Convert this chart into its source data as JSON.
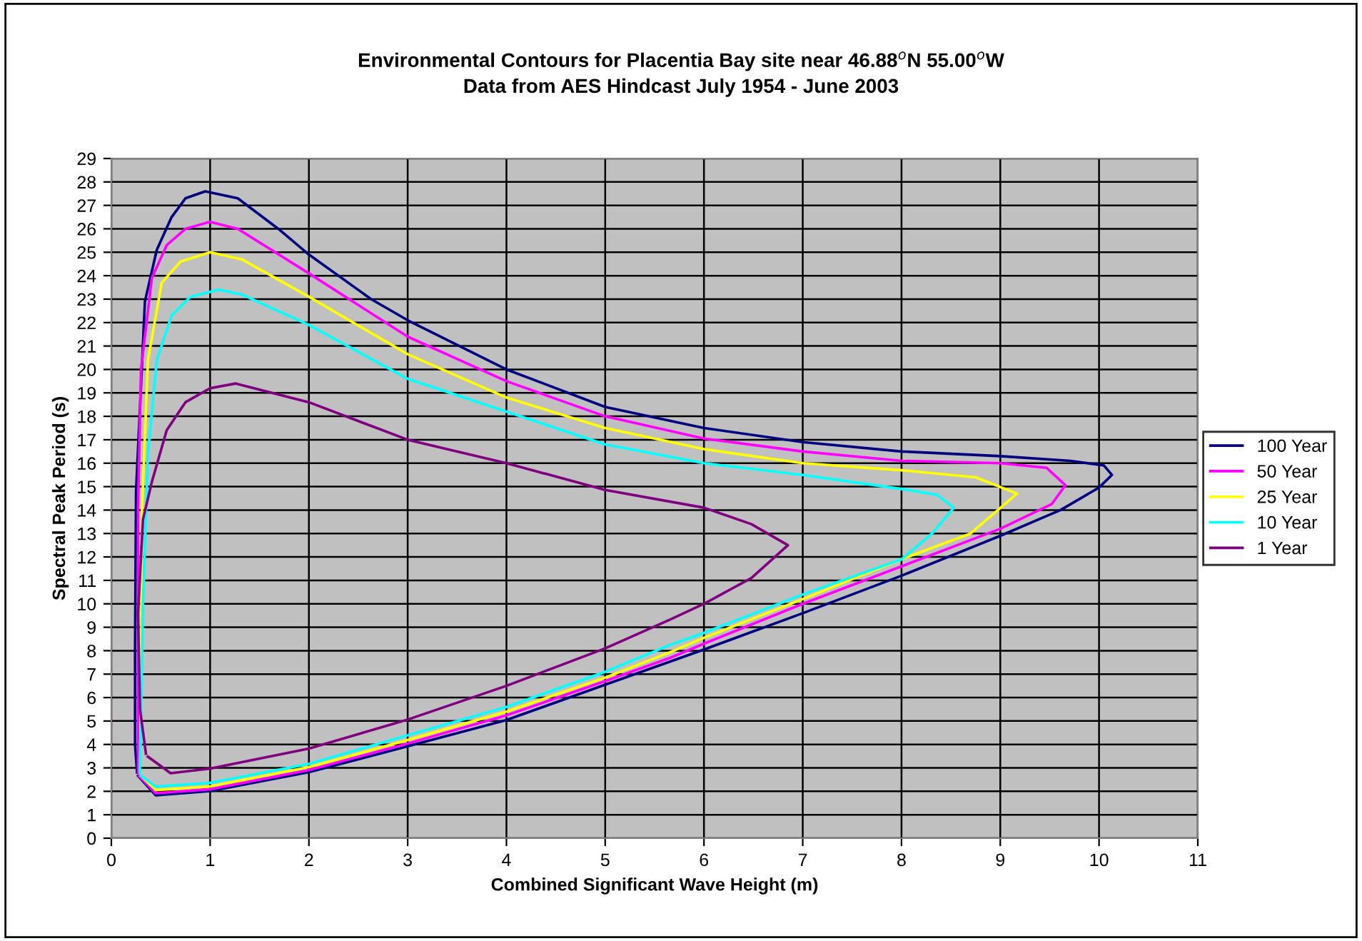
{
  "chart_data": {
    "type": "line",
    "title": "Environmental Contours for Placentia Bay site near 46.88$^{o}$N 55.00$^{o}$W\nData from AES Hindcast July 1954 - June 2003",
    "xlabel": "Combined Significant Wave Height (m)",
    "ylabel": "Spectral Peak Period (s)",
    "xlim": [
      0,
      11
    ],
    "xticks": [
      0,
      1,
      2,
      3,
      4,
      5,
      6,
      7,
      8,
      9,
      10,
      11
    ],
    "ylim": [
      0,
      29
    ],
    "yticks": [
      0,
      1,
      2,
      3,
      4,
      5,
      6,
      7,
      8,
      9,
      10,
      11,
      12,
      13,
      14,
      15,
      16,
      17,
      18,
      19,
      20,
      21,
      22,
      23,
      24,
      25,
      26,
      27,
      28,
      29
    ],
    "grid": true,
    "legend": "right",
    "marker": "none",
    "line_style": "solid",
    "series": [
      {
        "name": "100 Year",
        "color": "#000080",
        "x": [
          0.27,
          0.45,
          1,
          2,
          3,
          4,
          5,
          5.66,
          6,
          7,
          8,
          9,
          9.61,
          10,
          10.13,
          10.05,
          9.71,
          9,
          8,
          7,
          6,
          5,
          4,
          3,
          2.63,
          2,
          1.69,
          1.28,
          0.95,
          0.75,
          0.61,
          0.46,
          0.34,
          0.25,
          0.24,
          0.24,
          0.26
        ],
        "values": [
          2.66,
          1.83,
          2.01,
          2.82,
          3.92,
          5.04,
          6.55,
          7.54,
          8.05,
          9.6,
          11.2,
          12.9,
          14.0,
          14.96,
          15.5,
          15.9,
          16.1,
          16.3,
          16.5,
          16.9,
          17.5,
          18.4,
          20.0,
          22.1,
          23.0,
          24.9,
          26.0,
          27.3,
          27.6,
          27.3,
          26.5,
          25.1,
          22.9,
          14.8,
          8,
          4,
          2.8
        ]
      },
      {
        "name": "50 Year",
        "color": "#ff00ff",
        "x": [
          0.28,
          0.45,
          1,
          2,
          3,
          4,
          5,
          5.66,
          6,
          7,
          8,
          9,
          9.52,
          9.66,
          9.47,
          9,
          8,
          7,
          6,
          5,
          4,
          3,
          2,
          1.28,
          1,
          0.75,
          0.56,
          0.41,
          0.3,
          0.27,
          0.27,
          0.27
        ],
        "values": [
          2.66,
          1.92,
          2.09,
          2.91,
          4.04,
          5.24,
          6.7,
          7.7,
          8.3,
          10.0,
          11.6,
          13.2,
          14.25,
          15.06,
          15.8,
          16.0,
          16.1,
          16.5,
          17.05,
          18.0,
          19.5,
          21.4,
          24.1,
          26.0,
          26.3,
          26.0,
          25.3,
          23.9,
          20,
          14,
          6,
          2.8
        ]
      },
      {
        "name": "25 Year",
        "color": "#ffff00",
        "x": [
          0.3,
          0.45,
          1,
          2,
          3,
          4,
          5,
          5.66,
          6,
          7,
          8,
          8.7,
          9.17,
          8.75,
          8,
          7,
          6,
          5,
          4,
          3,
          2,
          1.32,
          1,
          0.7,
          0.51,
          0.37,
          0.31,
          0.3,
          0.29
        ],
        "values": [
          2.66,
          2.05,
          2.21,
          3.03,
          4.19,
          5.4,
          6.85,
          7.94,
          8.55,
          10.2,
          11.9,
          13.0,
          14.7,
          15.4,
          15.7,
          16.0,
          16.6,
          17.5,
          18.8,
          20.65,
          23.1,
          24.7,
          25.0,
          24.6,
          23.7,
          20.4,
          14,
          6,
          2.8
        ]
      },
      {
        "name": "10 Year",
        "color": "#00ffff",
        "x": [
          0.3,
          0.45,
          1,
          2,
          3,
          4,
          5,
          5.66,
          6,
          7,
          8,
          8.31,
          8.53,
          8.36,
          8,
          7,
          6,
          5,
          4,
          3,
          2,
          1.32,
          1.09,
          0.8,
          0.61,
          0.46,
          0.37,
          0.32,
          0.3,
          0.29
        ],
        "values": [
          2.66,
          2.2,
          2.36,
          3.17,
          4.39,
          5.6,
          7.1,
          8.25,
          8.76,
          10.4,
          11.9,
          13.0,
          14.1,
          14.65,
          14.9,
          15.5,
          16.0,
          16.8,
          18.2,
          19.6,
          21.9,
          23.2,
          23.4,
          23.1,
          22.3,
          20.4,
          16.4,
          10,
          5,
          2.8
        ]
      },
      {
        "name": "1 Year",
        "color": "#800080",
        "x": [
          0.37,
          0.6,
          1,
          2,
          3,
          4,
          5,
          5.66,
          6,
          6.48,
          6.85,
          6.48,
          6,
          5,
          4,
          3,
          2,
          1.26,
          1,
          0.75,
          0.56,
          0.41,
          0.32,
          0.27,
          0.29,
          0.35
        ],
        "values": [
          3.48,
          2.77,
          2.97,
          3.82,
          5.06,
          6.5,
          8.1,
          9.33,
          10.0,
          11.1,
          12.5,
          13.4,
          14.1,
          14.86,
          16.0,
          17.0,
          18.6,
          19.4,
          19.2,
          18.6,
          17.4,
          15.2,
          13.6,
          9.6,
          5.5,
          3.6
        ]
      }
    ]
  }
}
